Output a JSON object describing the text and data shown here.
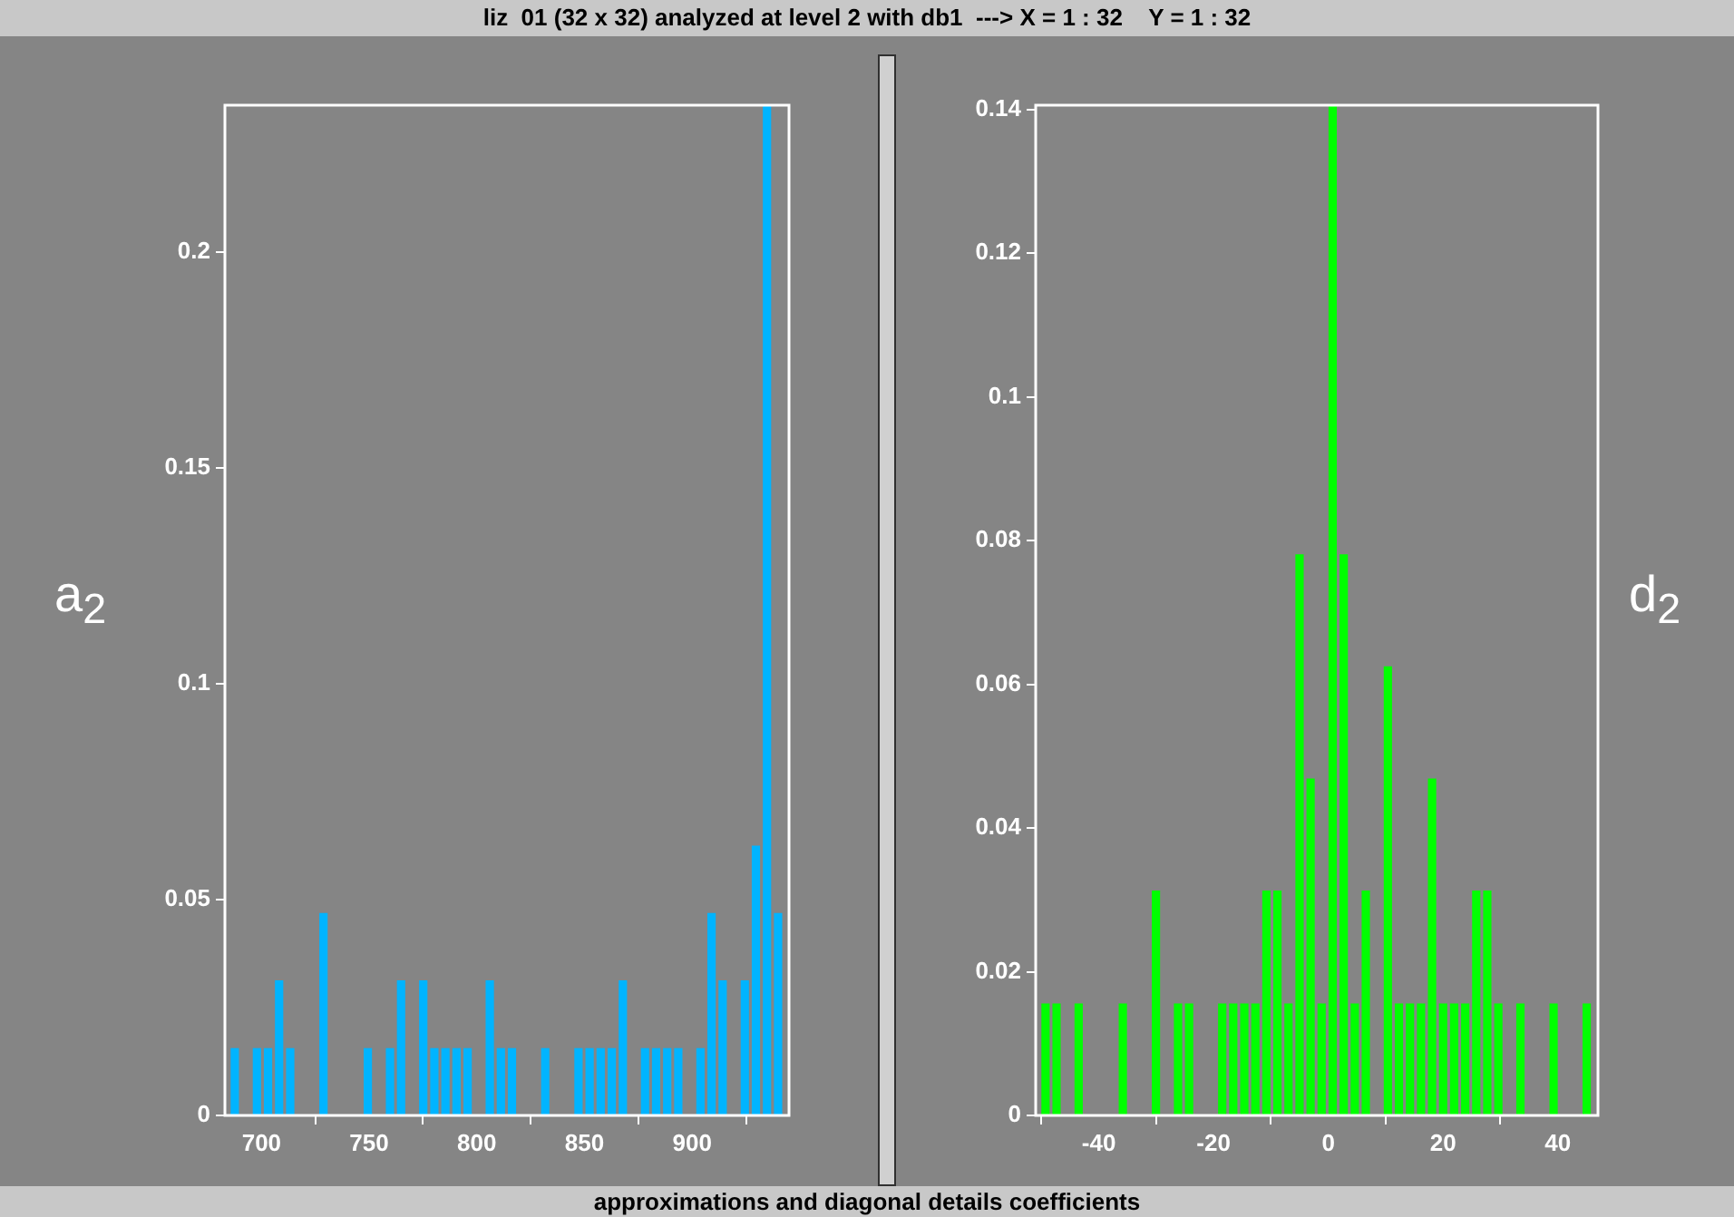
{
  "chart_data": [
    {
      "type": "histogram",
      "title": "liz  01 (32 x 32) analyzed at level 2 with db1  ---> X = 1 : 32    Y = 1 : 32",
      "annotations": [
        "approximations and diagonal details coefficients"
      ],
      "ylabel": "a$_{2}$",
      "color": "#00b4ff",
      "bins": [
        685,
        690.15,
        695.3,
        700.45,
        705.6,
        710.75,
        715.9,
        721.05,
        726.2,
        731.35,
        736.5,
        741.65,
        746.8,
        751.95,
        757.1,
        762.25,
        767.4,
        772.55,
        777.7,
        782.85,
        788,
        793.15,
        798.3,
        803.45,
        808.6,
        813.75,
        818.9,
        824.05,
        829.2,
        834.35,
        839.5,
        844.65,
        849.8,
        854.95,
        860.1,
        865.25,
        870.4,
        875.55,
        880.7,
        885.85,
        891,
        896.15,
        901.3,
        906.45,
        911.6,
        916.75,
        921.9,
        927.05,
        932.2,
        937.35,
        942.5
      ],
      "values": [
        0.0156,
        0,
        0.0156,
        0.0156,
        0.0313,
        0.0156,
        0,
        0,
        0.0469,
        0,
        0,
        0,
        0.0156,
        0,
        0.0156,
        0.0313,
        0,
        0.0313,
        0.0156,
        0.0156,
        0.0156,
        0.0156,
        0,
        0.0313,
        0.0156,
        0.0156,
        0,
        0,
        0.0156,
        0,
        0,
        0.0156,
        0.0156,
        0.0156,
        0.0156,
        0.0313,
        0,
        0.0156,
        0.0156,
        0.0156,
        0.0156,
        0,
        0.0156,
        0.0469,
        0.0313,
        0,
        0.0313,
        0.0625,
        0.234,
        0.0469
      ],
      "xlim": [
        683,
        945
      ],
      "xticks": [
        700,
        750,
        800,
        850,
        900
      ],
      "ylim": [
        0,
        0.234
      ],
      "yticks": [
        0,
        0.05,
        0.1,
        0.15,
        0.2
      ]
    },
    {
      "type": "histogram",
      "ylabel": "d$_{2}$",
      "color": "#00ff00",
      "bins": [
        -50.25,
        -48.325,
        -46.4,
        -44.475,
        -42.55,
        -40.625,
        -38.7,
        -36.775,
        -34.85,
        -32.925,
        -31,
        -29.075,
        -27.15,
        -25.225,
        -23.3,
        -21.375,
        -19.45,
        -17.525,
        -15.6,
        -13.675,
        -11.75,
        -9.825,
        -7.9,
        -5.975,
        -4.05,
        -2.125,
        -0.2,
        1.725,
        3.65,
        5.575,
        7.5,
        9.425,
        11.35,
        13.275,
        15.2,
        17.125,
        19.05,
        20.975,
        22.9,
        24.825,
        26.75,
        28.675,
        30.6,
        32.525,
        34.45,
        36.375,
        38.3,
        40.225,
        42.15,
        44.075,
        46
      ],
      "values": [
        0.0156,
        0.0156,
        0,
        0.0156,
        0,
        0,
        0,
        0.0156,
        0,
        0,
        0.0313,
        0,
        0.0156,
        0.0156,
        0,
        0,
        0.0156,
        0.0156,
        0.0156,
        0.0156,
        0.0313,
        0.0313,
        0.0156,
        0.0781,
        0.0469,
        0.0156,
        0.1406,
        0.0781,
        0.0156,
        0.0313,
        0,
        0.0625,
        0.0156,
        0.0156,
        0.0156,
        0.0469,
        0.0156,
        0.0156,
        0.0156,
        0.0313,
        0.0313,
        0.0156,
        0,
        0.0156,
        0,
        0,
        0.0156,
        0,
        0,
        0.0156
      ],
      "xlim": [
        -51,
        47
      ],
      "xticks": [
        -40,
        -20,
        0,
        20,
        40
      ],
      "ylim": [
        0,
        0.1406
      ],
      "yticks": [
        0,
        0.02,
        0.04,
        0.06,
        0.08,
        0.1,
        0.12,
        0.14
      ]
    }
  ]
}
